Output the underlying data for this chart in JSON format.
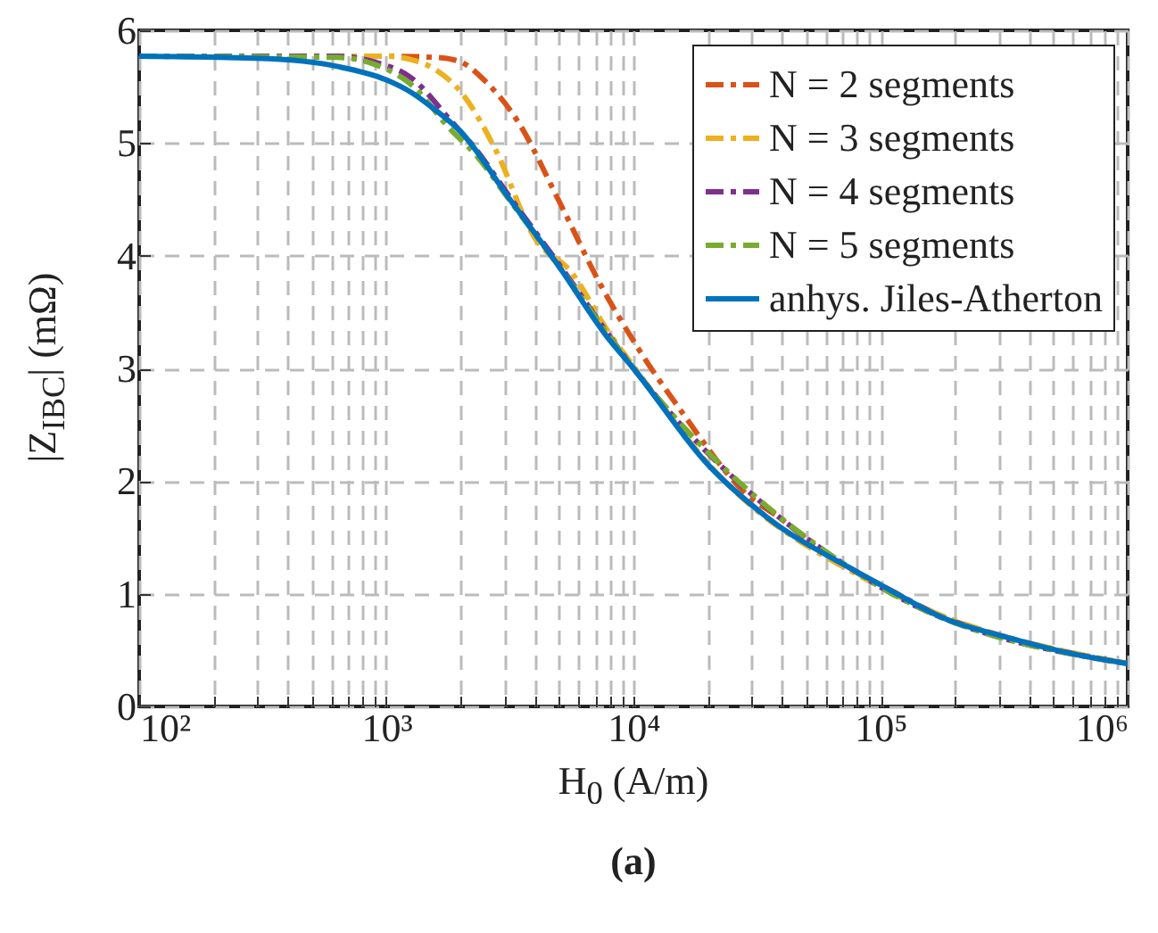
{
  "chart_data": {
    "type": "line",
    "xlabel": "H$_{0}$ (A/m)",
    "ylabel": "|Z$_{IBC}$| (mΩ)",
    "annotations": [
      "(a)"
    ],
    "log": "x",
    "grid": true,
    "legend": "top right",
    "xlim": [
      100,
      1000000
    ],
    "ylim": [
      0,
      6
    ],
    "yticks": [
      0,
      1,
      2,
      3,
      4,
      5,
      6
    ],
    "xticks": [
      {
        "value": 100,
        "label": "10²"
      },
      {
        "value": 200,
        "label": null
      },
      {
        "value": 300,
        "label": null
      },
      {
        "value": 400,
        "label": null
      },
      {
        "value": 500,
        "label": null
      },
      {
        "value": 600,
        "label": null
      },
      {
        "value": 700,
        "label": null
      },
      {
        "value": 800,
        "label": null
      },
      {
        "value": 900,
        "label": null
      },
      {
        "value": 1000,
        "label": "10³"
      },
      {
        "value": 2000,
        "label": null
      },
      {
        "value": 3000,
        "label": null
      },
      {
        "value": 4000,
        "label": null
      },
      {
        "value": 5000,
        "label": null
      },
      {
        "value": 6000,
        "label": null
      },
      {
        "value": 7000,
        "label": null
      },
      {
        "value": 8000,
        "label": null
      },
      {
        "value": 9000,
        "label": null
      },
      {
        "value": 10000,
        "label": "10⁴"
      },
      {
        "value": 20000,
        "label": null
      },
      {
        "value": 30000,
        "label": null
      },
      {
        "value": 40000,
        "label": null
      },
      {
        "value": 50000,
        "label": null
      },
      {
        "value": 60000,
        "label": null
      },
      {
        "value": 70000,
        "label": null
      },
      {
        "value": 80000,
        "label": null
      },
      {
        "value": 90000,
        "label": null
      },
      {
        "value": 100000,
        "label": "10⁵"
      },
      {
        "value": 200000,
        "label": null
      },
      {
        "value": 300000,
        "label": null
      },
      {
        "value": 400000,
        "label": null
      },
      {
        "value": 500000,
        "label": null
      },
      {
        "value": 600000,
        "label": null
      },
      {
        "value": 700000,
        "label": null
      },
      {
        "value": 800000,
        "label": null
      },
      {
        "value": 900000,
        "label": null
      },
      {
        "value": 1000000,
        "label": "10⁶"
      }
    ],
    "series": [
      {
        "name": "N = 2 segments",
        "color": "#d95319",
        "line_style": "dashed",
        "x": [
          100,
          1000,
          1585,
          1995,
          2512,
          3388,
          5012,
          7413,
          10230,
          15850,
          28180,
          39810,
          63100,
          100000,
          181970,
          316200,
          1000000
        ],
        "values": [
          5.77,
          5.77,
          5.76,
          5.72,
          5.55,
          5.2,
          4.48,
          3.73,
          3.21,
          2.6,
          1.9,
          1.66,
          1.32,
          1.08,
          0.79,
          0.62,
          0.38
        ]
      },
      {
        "name": "N = 3 segments",
        "color": "#edb120",
        "line_style": "dashed",
        "x": [
          100,
          1000,
          1259,
          1585,
          2042,
          2754,
          3981,
          5623,
          7943,
          10000,
          19950,
          100000,
          1000000
        ],
        "values": [
          5.77,
          5.77,
          5.74,
          5.65,
          5.43,
          4.95,
          4.16,
          3.85,
          3.32,
          3.02,
          2.16,
          1.06,
          0.38
        ]
      },
      {
        "name": "N = 4 segments",
        "color": "#7e2f8e",
        "line_style": "dashed",
        "x": [
          100,
          631,
          891,
          1259,
          1820,
          2291,
          3162,
          5012,
          10000,
          100000,
          1000000
        ],
        "values": [
          5.77,
          5.77,
          5.72,
          5.58,
          5.2,
          4.95,
          4.52,
          3.92,
          3.0,
          1.06,
          0.38
        ]
      },
      {
        "name": "N = 5 segments",
        "color": "#77ac30",
        "line_style": "dashed",
        "x": [
          100,
          631,
          891,
          1259,
          1820,
          2291,
          3162,
          5012,
          10000,
          100000,
          1000000
        ],
        "values": [
          5.77,
          5.76,
          5.7,
          5.52,
          5.12,
          4.9,
          4.49,
          3.9,
          3.0,
          1.06,
          0.38
        ]
      },
      {
        "name": "anhys. Jiles-Atherton",
        "color": "#0072bd",
        "line_style": "solid",
        "x": [
          100,
          316,
          631,
          1000,
          1259,
          1585,
          2000,
          3162,
          5012,
          7762,
          10000,
          19950,
          34670,
          79430,
          100000,
          181970,
          316200,
          562000,
          1000000
        ],
        "values": [
          5.77,
          5.75,
          5.68,
          5.56,
          5.45,
          5.29,
          5.1,
          4.5,
          3.9,
          3.29,
          3.0,
          2.15,
          1.68,
          1.2,
          1.08,
          0.78,
          0.62,
          0.48,
          0.38
        ]
      }
    ]
  }
}
